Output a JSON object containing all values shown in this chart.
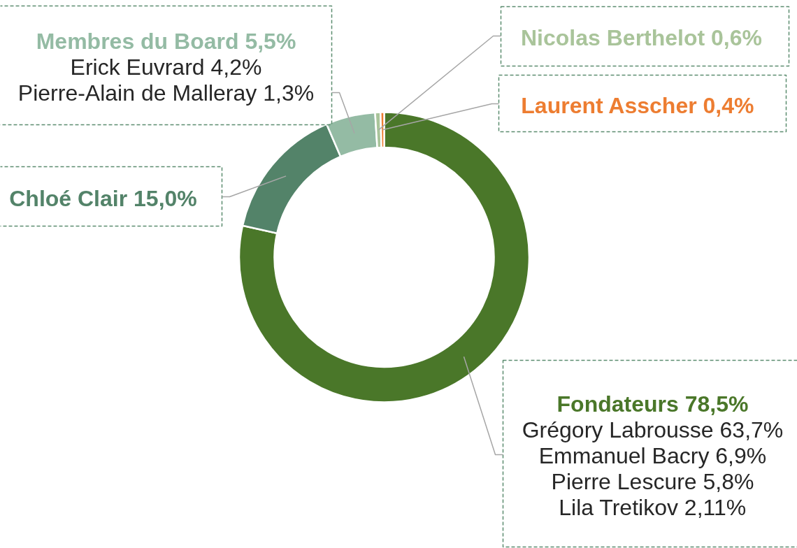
{
  "chart_data": {
    "type": "donut",
    "categories": [
      "Fondateurs",
      "Chloé Clair",
      "Membres du Board",
      "Nicolas Berthelot",
      "Laurent Asscher"
    ],
    "values": [
      78.5,
      15.0,
      5.5,
      0.6,
      0.4
    ],
    "colors": [
      "#4a7729",
      "#538369",
      "#94bba4",
      "#a9c49a",
      "#ed7d31"
    ],
    "value_labels": [
      "78,5%",
      "15,0%",
      "5,5%",
      "0,6%",
      "0,4%"
    ],
    "annotations": [
      {
        "text": "Erick Euvrard 4,2%",
        "x": "Membres du Board"
      },
      {
        "text": "Pierre-Alain de Malleray 1,3%",
        "x": "Membres du Board"
      },
      {
        "text": "Grégory Labrousse 63,7%",
        "x": "Fondateurs"
      },
      {
        "text": "Emmanuel Bacry 6,9%",
        "x": "Fondateurs"
      },
      {
        "text": "Pierre Lescure 5,8%",
        "x": "Fondateurs"
      },
      {
        "text": "Lila Tretikov 2,11%",
        "x": "Fondateurs"
      }
    ]
  }
}
